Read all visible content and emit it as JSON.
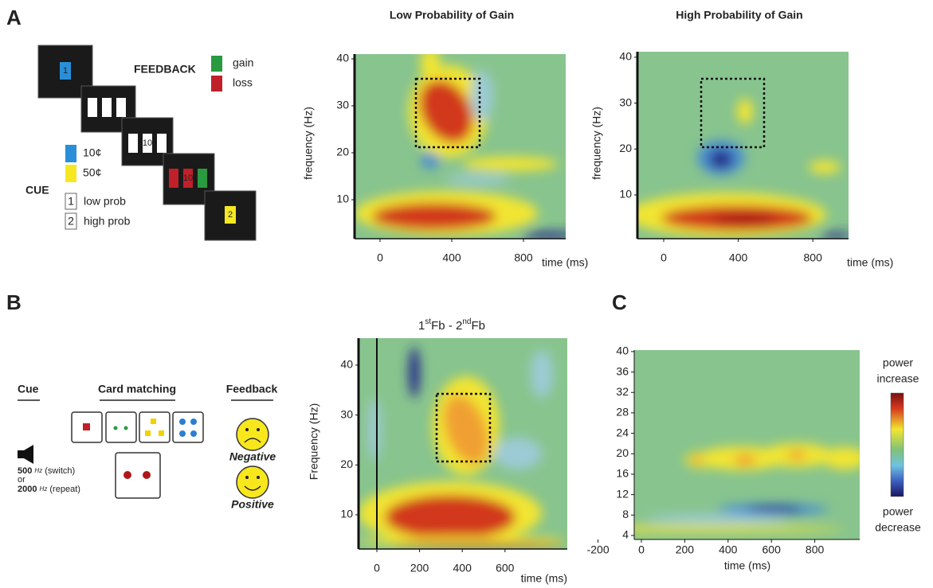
{
  "panel_a": {
    "label": "A",
    "task": {
      "feedback": "FEEDBACK",
      "gain": "gain",
      "loss": "loss",
      "cue": "CUE",
      "cent10": "10¢",
      "cent50": "50¢",
      "prob1_box": "1",
      "low_prob": "low prob",
      "prob2_box": "2",
      "high_prob": "high prob",
      "screen1": "1",
      "screen3": "10",
      "screen4": "10",
      "screen5": "2"
    },
    "plots": [
      {
        "title": "Low Probability of Gain",
        "ylabel": "frequency (Hz)",
        "xlabel": "time (ms)",
        "xticks": [
          0,
          400,
          800
        ],
        "yticks": [
          10,
          20,
          30,
          40
        ]
      },
      {
        "title": "High Probability of Gain",
        "ylabel": "frequency (Hz)",
        "xlabel": "time (ms)",
        "xticks": [
          0,
          400,
          800
        ],
        "yticks": [
          10,
          20,
          30,
          40
        ]
      }
    ]
  },
  "panel_b": {
    "label": "B",
    "task": {
      "cue": "Cue",
      "card_matching": "Card matching",
      "feedback": "Feedback",
      "negative": "Negative",
      "positive": "Positive",
      "tone1": "500",
      "hz1": "Hz",
      "switch": "(switch)",
      "or": "or",
      "tone2": "2000",
      "hz2": "Hz",
      "repeat": "(repeat)"
    },
    "plot": {
      "title": [
        "1",
        "st",
        "Fb - 2",
        "nd",
        "Fb"
      ],
      "ylabel": "Frequency (Hz)",
      "xlabel": "time (ms)",
      "xticks": [
        0,
        200,
        400,
        600
      ],
      "yticks": [
        10,
        20,
        30,
        40
      ]
    }
  },
  "panel_c": {
    "label": "C",
    "plot": {
      "xlabel": "time (ms)",
      "xticks": [
        -200,
        0,
        200,
        400,
        600,
        800
      ],
      "yticks": [
        4,
        8,
        12,
        16,
        20,
        24,
        28,
        32,
        36,
        40
      ],
      "colorbar_top": [
        "power",
        "increase"
      ],
      "colorbar_bottom": [
        "power",
        "decrease"
      ]
    }
  }
}
